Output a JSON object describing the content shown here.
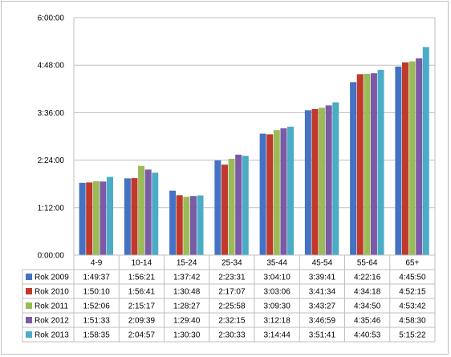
{
  "chart_data": {
    "type": "bar",
    "categories": [
      "4-9",
      "10-14",
      "15-24",
      "25-34",
      "35-44",
      "45-54",
      "55-64",
      "65+"
    ],
    "y_ticks": [
      "0:00:00",
      "1:12:00",
      "2:24:00",
      "3:36:00",
      "4:48:00",
      "6:00:00"
    ],
    "ylim": [
      0,
      21600
    ],
    "grid": true,
    "legend": "data-table",
    "series": [
      {
        "name": "Rok 2009",
        "color": "#4472C4",
        "labels": [
          "1:49:37",
          "1:56:21",
          "1:37:42",
          "2:23:31",
          "3:04:10",
          "3:39:41",
          "4:22:16",
          "4:45:50"
        ],
        "values": [
          6577,
          6981,
          5862,
          8611,
          11050,
          13181,
          15736,
          17150
        ]
      },
      {
        "name": "Rok 2010",
        "color": "#C0392B",
        "labels": [
          "1:50:10",
          "1:56:41",
          "1:30:48",
          "2:17:07",
          "3:03:06",
          "3:41:34",
          "4:34:18",
          "4:52:15"
        ],
        "values": [
          6610,
          7001,
          5448,
          8227,
          10986,
          13294,
          16458,
          17535
        ]
      },
      {
        "name": "Rok 2011",
        "color": "#9BBB59",
        "labels": [
          "1:52:06",
          "2:15:17",
          "1:28:27",
          "2:25:58",
          "3:09:30",
          "3:43:27",
          "4:34:50",
          "4:53:42"
        ],
        "values": [
          6726,
          8117,
          5307,
          8758,
          11370,
          13407,
          16490,
          17622
        ]
      },
      {
        "name": "Rok 2012",
        "color": "#7B5AA6",
        "labels": [
          "1:51:33",
          "2:09:39",
          "1:29:40",
          "2:32:15",
          "3:12:18",
          "3:46:59",
          "4:35:46",
          "4:58:30"
        ],
        "values": [
          6693,
          7779,
          5380,
          9135,
          11538,
          13619,
          16546,
          17910
        ]
      },
      {
        "name": "Rok 2013",
        "color": "#4BACC6",
        "labels": [
          "1:58:35",
          "2:04:57",
          "1:30:30",
          "2:30:33",
          "3:14:44",
          "3:51:41",
          "4:40:53",
          "5:15:22"
        ],
        "values": [
          7115,
          7497,
          5430,
          9033,
          11684,
          13901,
          16853,
          18922
        ]
      }
    ]
  }
}
